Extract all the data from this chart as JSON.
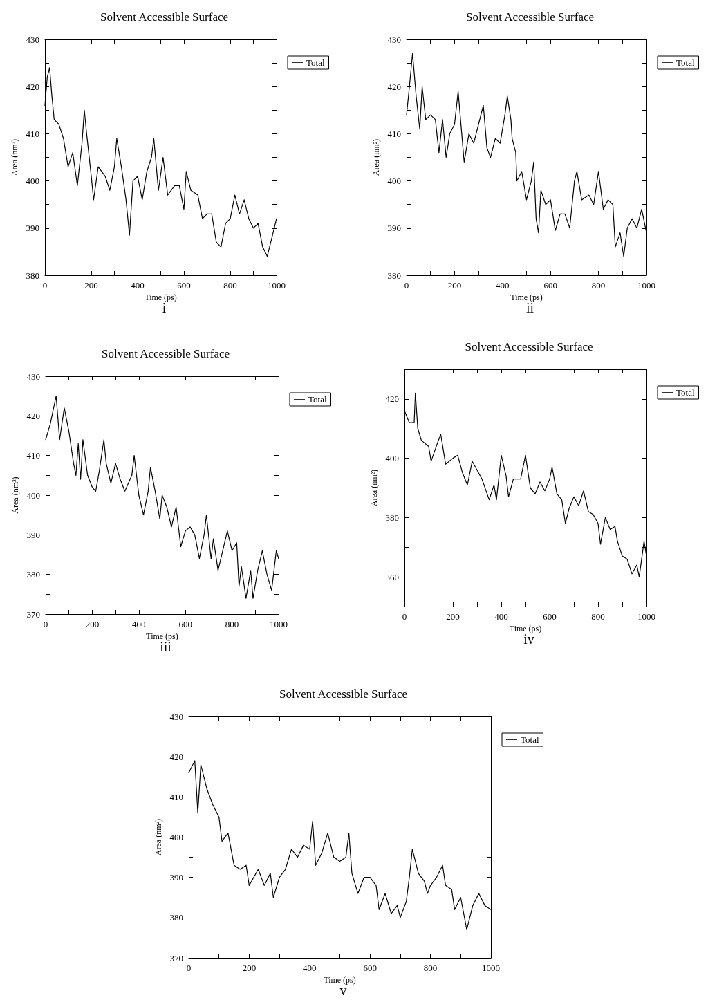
{
  "chart_data": [
    {
      "type": "line",
      "title": "Solvent Accessible Surface",
      "subtitle": "i",
      "xlabel": "Time (ps)",
      "ylabel": "Area (nm²)",
      "legend": "top right",
      "marker": "none",
      "line_style": "solid",
      "grid": false,
      "xlim": [
        0,
        1000
      ],
      "xticks": [
        0,
        {
          "value": 100,
          "label": null
        },
        200,
        {
          "value": 300,
          "label": null
        },
        400,
        {
          "value": 500,
          "label": null
        },
        600,
        {
          "value": 700,
          "label": null
        },
        800,
        {
          "value": 900,
          "label": null
        },
        1000
      ],
      "ylim": [
        380,
        430
      ],
      "yticks": [
        380,
        {
          "value": 385,
          "label": null
        },
        390,
        {
          "value": 395,
          "label": null
        },
        400,
        {
          "value": 405,
          "label": null
        },
        410,
        {
          "value": 415,
          "label": null
        },
        420,
        {
          "value": 425,
          "label": null
        },
        430
      ],
      "series": [
        {
          "name": "Total",
          "color": "#000000",
          "x": [
            0,
            10,
            20,
            30,
            40,
            60,
            80,
            100,
            120,
            140,
            160,
            170,
            180,
            200,
            210,
            230,
            260,
            280,
            300,
            310,
            330,
            350,
            365,
            380,
            400,
            420,
            440,
            460,
            470,
            490,
            510,
            530,
            560,
            580,
            600,
            610,
            630,
            660,
            680,
            700,
            720,
            740,
            760,
            780,
            800,
            820,
            840,
            860,
            880,
            900,
            920,
            940,
            960,
            980,
            1000
          ],
          "values": [
            416,
            422,
            424,
            418,
            413,
            412,
            409,
            403,
            406,
            399,
            408,
            415,
            410,
            401,
            396,
            403,
            401,
            398,
            403,
            409,
            403,
            396,
            388.5,
            400,
            401,
            396,
            402,
            405,
            409,
            398,
            405,
            397,
            399,
            399,
            394,
            402,
            398,
            397,
            392,
            393,
            393,
            387,
            386,
            391,
            392,
            397,
            393,
            396,
            392,
            390,
            391,
            386,
            384,
            388,
            392
          ]
        }
      ]
    },
    {
      "type": "line",
      "title": "Solvent Accessible Surface",
      "subtitle": "ii",
      "xlabel": "Time (ps)",
      "ylabel": "Area (nm²)",
      "legend": "top right",
      "marker": "none",
      "line_style": "solid",
      "grid": false,
      "xlim": [
        0,
        1000
      ],
      "xticks": [
        0,
        {
          "value": 100,
          "label": null
        },
        200,
        {
          "value": 300,
          "label": null
        },
        400,
        {
          "value": 500,
          "label": null
        },
        600,
        {
          "value": 700,
          "label": null
        },
        800,
        {
          "value": 900,
          "label": null
        },
        1000
      ],
      "ylim": [
        380,
        430
      ],
      "yticks": [
        380,
        {
          "value": 385,
          "label": null
        },
        390,
        {
          "value": 395,
          "label": null
        },
        400,
        {
          "value": 405,
          "label": null
        },
        410,
        {
          "value": 415,
          "label": null
        },
        420,
        {
          "value": 425,
          "label": null
        },
        430
      ],
      "series": [
        {
          "name": "Total",
          "color": "#000000",
          "x": [
            0,
            10,
            25,
            40,
            55,
            65,
            80,
            100,
            120,
            135,
            150,
            165,
            180,
            200,
            215,
            230,
            240,
            260,
            280,
            300,
            320,
            335,
            350,
            370,
            390,
            410,
            420,
            435,
            440,
            455,
            460,
            480,
            500,
            520,
            530,
            540,
            550,
            560,
            580,
            600,
            620,
            640,
            660,
            680,
            700,
            710,
            730,
            760,
            780,
            800,
            820,
            840,
            860,
            870,
            890,
            905,
            920,
            940,
            960,
            980,
            1000
          ],
          "values": [
            414,
            419,
            427,
            418,
            411,
            420,
            413,
            414,
            413,
            406,
            413,
            405,
            410,
            412,
            419,
            410,
            404,
            410,
            408,
            412,
            416,
            407,
            405,
            409,
            408,
            414,
            418,
            413,
            409,
            406,
            400,
            402,
            396,
            400,
            404,
            392,
            389,
            398,
            395,
            396,
            389.5,
            393,
            393,
            390,
            400,
            402,
            396,
            397,
            395,
            402,
            394,
            396,
            395,
            386,
            389,
            384,
            390,
            392,
            390,
            394,
            389
          ]
        }
      ]
    },
    {
      "type": "line",
      "title": "Solvent Accessible Surface",
      "subtitle": "iii",
      "xlabel": "Time (ps)",
      "ylabel": "Area (nm²)",
      "legend": "top right",
      "marker": "none",
      "line_style": "solid",
      "grid": false,
      "xlim": [
        0,
        1000
      ],
      "xticks": [
        0,
        {
          "value": 100,
          "label": null
        },
        200,
        {
          "value": 300,
          "label": null
        },
        400,
        {
          "value": 500,
          "label": null
        },
        600,
        {
          "value": 700,
          "label": null
        },
        800,
        {
          "value": 900,
          "label": null
        },
        1000
      ],
      "ylim": [
        370,
        430
      ],
      "yticks": [
        370,
        {
          "value": 375,
          "label": null
        },
        380,
        {
          "value": 385,
          "label": null
        },
        390,
        {
          "value": 395,
          "label": null
        },
        400,
        {
          "value": 405,
          "label": null
        },
        410,
        {
          "value": 415,
          "label": null
        },
        420,
        {
          "value": 425,
          "label": null
        },
        430
      ],
      "series": [
        {
          "name": "Total",
          "color": "#000000",
          "x": [
            0,
            20,
            45,
            60,
            80,
            100,
            120,
            130,
            140,
            150,
            160,
            180,
            200,
            215,
            230,
            250,
            260,
            280,
            300,
            320,
            340,
            370,
            380,
            400,
            420,
            440,
            450,
            470,
            490,
            500,
            520,
            540,
            560,
            580,
            600,
            620,
            640,
            660,
            680,
            690,
            710,
            720,
            740,
            760,
            780,
            800,
            820,
            830,
            840,
            860,
            880,
            890,
            910,
            930,
            950,
            970,
            990,
            1000
          ],
          "values": [
            414,
            418,
            425,
            414,
            422,
            416,
            408,
            405,
            413,
            404,
            414,
            405,
            402,
            401,
            406,
            414,
            408,
            403,
            408,
            404,
            401,
            405,
            410,
            400,
            395,
            401,
            407,
            401,
            394,
            400,
            397,
            392,
            397,
            387,
            391,
            392,
            390,
            384,
            390,
            395,
            384,
            389,
            381,
            386,
            391,
            386,
            388,
            377,
            382,
            374,
            381,
            374,
            381,
            386,
            380,
            376,
            386,
            384
          ]
        }
      ]
    },
    {
      "type": "line",
      "title": "Solvent Accessible Surface",
      "subtitle": "iv",
      "xlabel": "Time (ps)",
      "ylabel": "Area (nm²)",
      "legend": "top right",
      "marker": "none",
      "line_style": "solid",
      "grid": false,
      "xlim": [
        0,
        1000
      ],
      "xticks": [
        0,
        {
          "value": 100,
          "label": null
        },
        200,
        {
          "value": 300,
          "label": null
        },
        400,
        {
          "value": 500,
          "label": null
        },
        600,
        {
          "value": 700,
          "label": null
        },
        800,
        {
          "value": 900,
          "label": null
        },
        1000
      ],
      "ylim": [
        350,
        430
      ],
      "yticks": [
        {
          "value": 350,
          "label": null
        },
        360,
        {
          "value": 370,
          "label": null
        },
        380,
        {
          "value": 390,
          "label": null
        },
        400,
        {
          "value": 410,
          "label": null
        },
        420,
        {
          "value": 430,
          "label": null
        }
      ],
      "series": [
        {
          "name": "Total",
          "color": "#000000",
          "x": [
            0,
            20,
            40,
            45,
            55,
            70,
            100,
            110,
            140,
            150,
            170,
            200,
            220,
            240,
            260,
            280,
            300,
            320,
            350,
            370,
            380,
            400,
            420,
            430,
            450,
            480,
            500,
            520,
            540,
            560,
            580,
            600,
            610,
            630,
            650,
            665,
            680,
            700,
            720,
            740,
            760,
            780,
            800,
            810,
            830,
            850,
            870,
            880,
            900,
            920,
            940,
            960,
            970,
            990,
            1000
          ],
          "values": [
            416,
            412,
            412,
            422,
            410,
            406,
            404,
            399,
            406,
            408,
            398,
            400,
            401,
            395,
            391,
            399,
            396,
            393,
            386,
            391,
            386,
            401,
            394,
            387,
            393,
            393,
            401,
            390,
            388,
            392,
            389,
            393,
            397,
            388,
            386,
            378,
            383,
            387,
            384,
            389,
            382,
            381,
            378,
            371,
            380,
            376,
            377,
            372,
            367,
            366,
            361,
            364,
            360,
            372,
            367
          ]
        }
      ]
    },
    {
      "type": "line",
      "title": "Solvent Accessible Surface",
      "subtitle": "v",
      "xlabel": "Time (ps)",
      "ylabel": "Area (nm²)",
      "legend": "top right",
      "marker": "none",
      "line_style": "solid",
      "grid": false,
      "xlim": [
        0,
        1000
      ],
      "xticks": [
        0,
        {
          "value": 100,
          "label": null
        },
        200,
        {
          "value": 300,
          "label": null
        },
        400,
        {
          "value": 500,
          "label": null
        },
        600,
        {
          "value": 700,
          "label": null
        },
        800,
        {
          "value": 900,
          "label": null
        },
        1000
      ],
      "ylim": [
        370,
        430
      ],
      "yticks": [
        370,
        {
          "value": 375,
          "label": null
        },
        380,
        {
          "value": 385,
          "label": null
        },
        390,
        {
          "value": 395,
          "label": null
        },
        400,
        {
          "value": 405,
          "label": null
        },
        410,
        {
          "value": 415,
          "label": null
        },
        420,
        {
          "value": 425,
          "label": null
        },
        430
      ],
      "series": [
        {
          "name": "Total",
          "color": "#000000",
          "x": [
            0,
            20,
            30,
            40,
            60,
            80,
            100,
            110,
            130,
            150,
            170,
            190,
            200,
            230,
            250,
            270,
            280,
            300,
            320,
            340,
            360,
            380,
            400,
            410,
            420,
            440,
            460,
            480,
            500,
            520,
            530,
            540,
            560,
            580,
            600,
            620,
            630,
            650,
            670,
            690,
            700,
            720,
            730,
            740,
            760,
            780,
            790,
            800,
            820,
            840,
            850,
            870,
            880,
            900,
            920,
            940,
            960,
            980,
            1000
          ],
          "values": [
            416,
            419,
            406,
            418,
            412,
            408,
            405,
            399,
            401,
            393,
            392,
            393,
            388,
            392,
            388,
            391,
            385,
            390,
            392,
            397,
            395,
            398,
            397,
            404,
            393,
            396,
            401,
            395,
            394,
            395,
            401,
            391,
            386,
            390,
            390,
            388,
            382,
            386,
            381,
            383,
            380,
            384,
            390,
            397,
            391,
            389,
            386,
            388,
            390,
            393,
            388,
            387,
            382,
            385,
            377,
            383,
            386,
            383,
            382
          ]
        }
      ]
    }
  ]
}
